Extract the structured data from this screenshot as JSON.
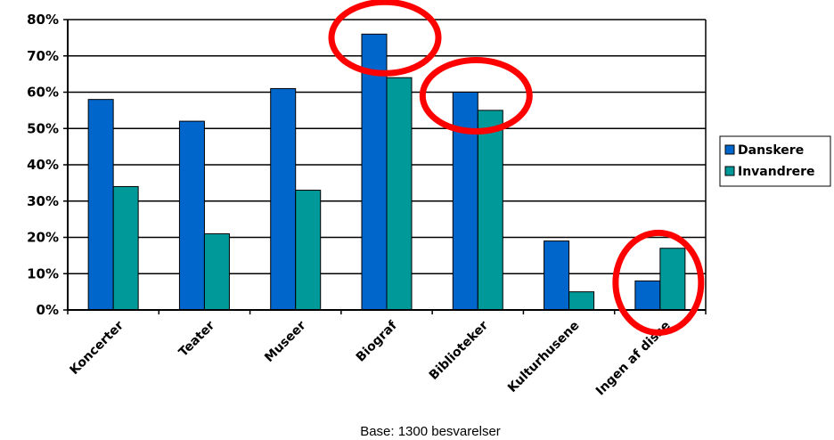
{
  "chart_data": {
    "type": "bar",
    "categories": [
      "Koncerter",
      "Teater",
      "Museer",
      "Biograf",
      "Biblioteker",
      "Kulturhusene",
      "Ingen af disse"
    ],
    "series": [
      {
        "name": "Danskere",
        "values": [
          58,
          52,
          61,
          76,
          60,
          19,
          8
        ]
      },
      {
        "name": "Invandrere",
        "values": [
          34,
          21,
          33,
          64,
          55,
          5,
          17
        ]
      }
    ],
    "yticks": [
      "0%",
      "10%",
      "20%",
      "30%",
      "40%",
      "50%",
      "60%",
      "70%",
      "80%"
    ],
    "ylim": [
      0,
      80
    ],
    "grid": true,
    "legend_position": "right",
    "footnote": "Base: 1300 besvarelser",
    "highlighted_categories": [
      "Biograf",
      "Biblioteker",
      "Ingen af disse"
    ],
    "colors": {
      "Danskere": "#0066cc",
      "Invandrere": "#009999",
      "highlight": "#ff0000",
      "grid": "#000000"
    }
  }
}
